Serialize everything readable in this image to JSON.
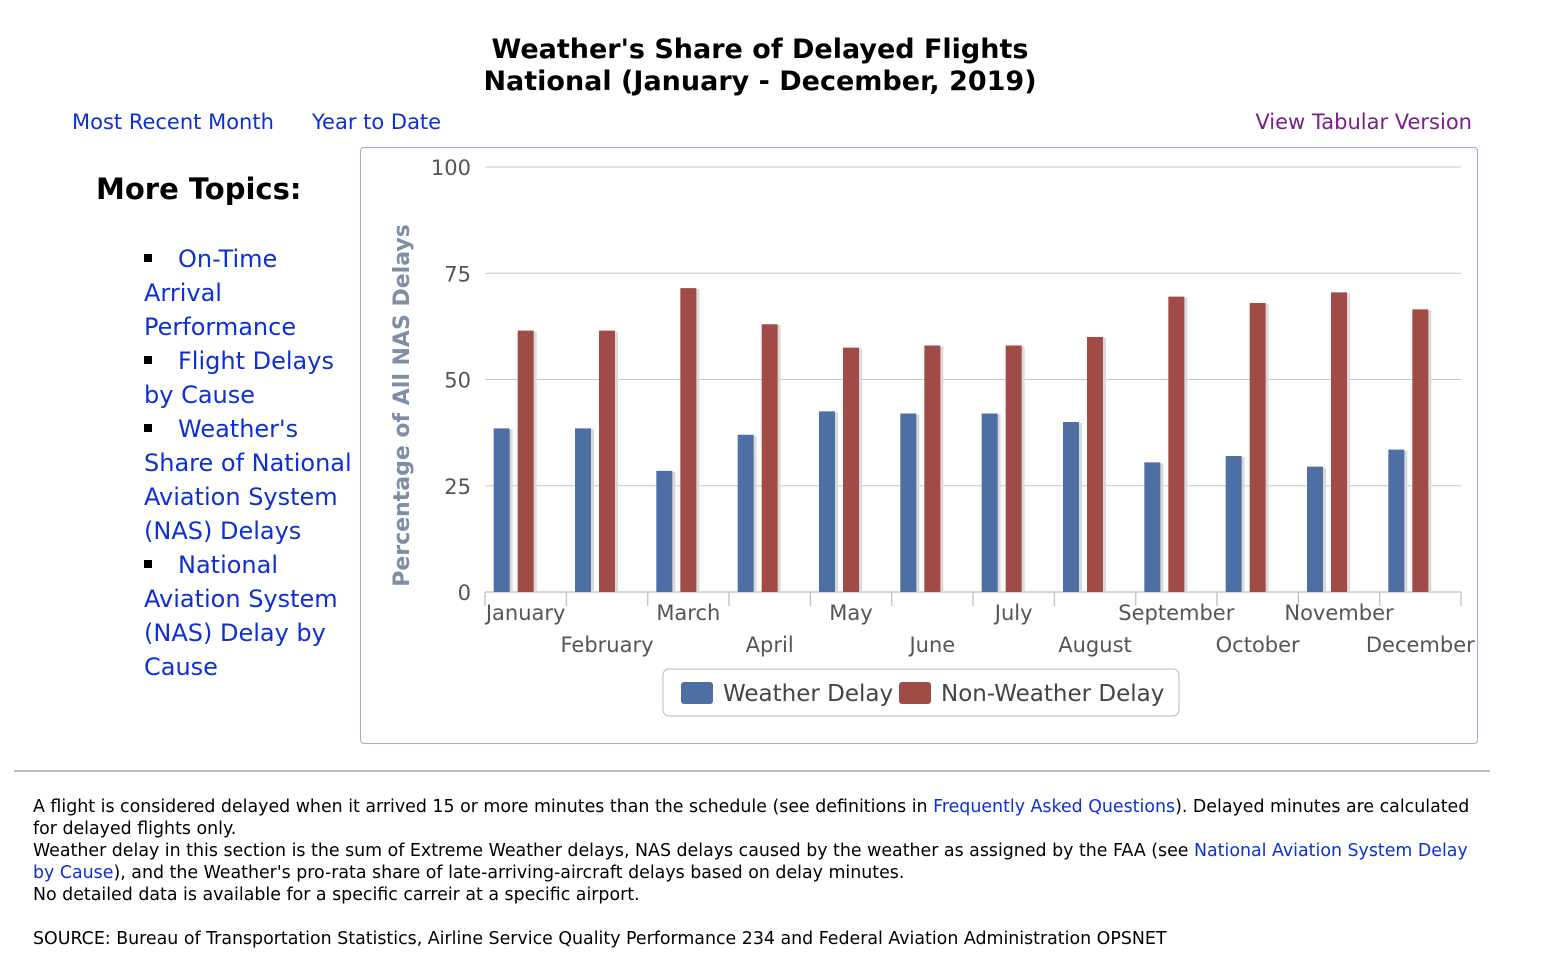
{
  "title": {
    "line1": "Weather's Share of Delayed Flights",
    "line2": "National (January - December, 2019)"
  },
  "links": {
    "most_recent_month": "Most Recent Month",
    "year_to_date": "Year to Date",
    "view_tabular": "View Tabular Version"
  },
  "topics": {
    "heading": "More Topics:",
    "items": [
      "On-Time Arrival Performance",
      "Flight Delays by Cause",
      "Weather's Share of National Aviation System (NAS) Delays",
      "National Aviation System (NAS) Delay by Cause"
    ]
  },
  "colors": {
    "weather": "#4e6fa3",
    "non_weather": "#a14b47",
    "axis_label": "#7d8ea6",
    "link": "#0f2fd6",
    "tabular_link": "#7a1f86"
  },
  "chart_data": {
    "type": "bar",
    "categories": [
      "January",
      "February",
      "March",
      "April",
      "May",
      "June",
      "July",
      "August",
      "September",
      "October",
      "November",
      "December"
    ],
    "series": [
      {
        "name": "Weather Delay",
        "values": [
          38.5,
          38.5,
          28.5,
          37,
          42.5,
          42,
          42,
          40,
          30.5,
          32,
          29.5,
          33.5
        ]
      },
      {
        "name": "Non-Weather Delay",
        "values": [
          61.5,
          61.5,
          71.5,
          63,
          57.5,
          58,
          58,
          60,
          69.5,
          68,
          70.5,
          66.5
        ]
      }
    ],
    "ylabel": "Percentage of All NAS Delays",
    "xlabel": "",
    "ylim": [
      0,
      100
    ],
    "yticks": [
      0,
      25,
      50,
      75,
      100
    ],
    "grid": true,
    "legend_position": "bottom-center"
  },
  "notes": {
    "p1_text1": "A flight is considered delayed when it arrived 15 or more minutes than the schedule (see definitions in ",
    "p1_link": "Frequently Asked Questions",
    "p1_text2": "). Delayed minutes are calculated for delayed flights only.",
    "p2_text1": "Weather delay in this section is the sum of Extreme Weather delays, NAS delays caused by the weather as assigned by the FAA (see ",
    "p2_link": "National Aviation System Delay by Cause",
    "p2_text2": "), and the Weather's pro-rata share of late-arriving-aircraft delays based on delay minutes.",
    "p3": "No detailed data is available for a specific carreir at a specific airport.",
    "source": "SOURCE: Bureau of Transportation Statistics, Airline Service Quality Performance 234 and Federal Aviation Administration OPSNET"
  }
}
